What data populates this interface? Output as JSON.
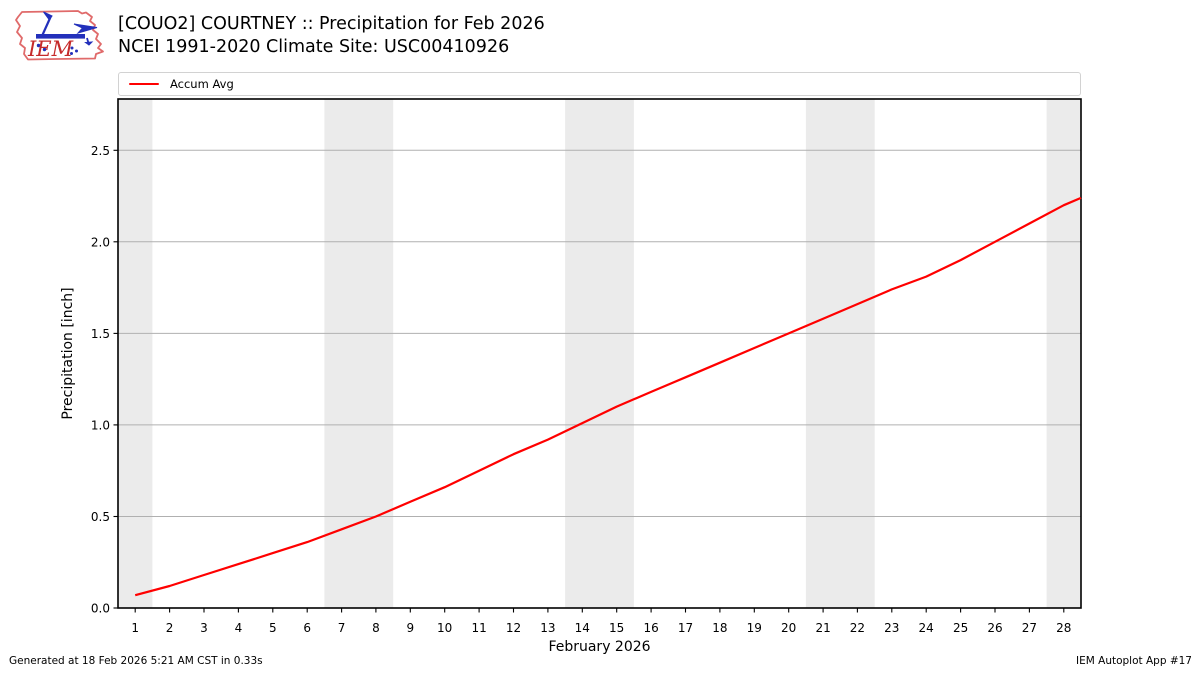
{
  "header": {
    "logo_text": "IEM",
    "title_line1": "[COUO2] COURTNEY :: Precipitation for Feb 2026",
    "title_line2": "NCEI 1991-2020 Climate Site: USC00410926"
  },
  "legend": {
    "items": [
      {
        "label": "Accum Avg",
        "color": "#ff0000"
      }
    ]
  },
  "chart_data": {
    "type": "line",
    "title": "[COUO2] COURTNEY :: Precipitation for Feb 2026",
    "subtitle": "NCEI 1991-2020 Climate Site: USC00410926",
    "xlabel": "February 2026",
    "ylabel": "Precipitation [inch]",
    "xlim": [
      0.5,
      28.5
    ],
    "ylim": [
      0,
      2.78
    ],
    "xticks": [
      1,
      2,
      3,
      4,
      5,
      6,
      7,
      8,
      9,
      10,
      11,
      12,
      13,
      14,
      15,
      16,
      17,
      18,
      19,
      20,
      21,
      22,
      23,
      24,
      25,
      26,
      27,
      28
    ],
    "yticks": [
      0.0,
      0.5,
      1.0,
      1.5,
      2.0,
      2.5
    ],
    "grid": "horizontal",
    "legend_position": "top",
    "weekend_shading_days": [
      1,
      7,
      8,
      14,
      15,
      21,
      22,
      28
    ],
    "series": [
      {
        "name": "Accum Avg",
        "color": "#ff0000",
        "x": [
          1,
          2,
          3,
          4,
          5,
          6,
          7,
          8,
          9,
          10,
          11,
          12,
          13,
          14,
          15,
          16,
          17,
          18,
          19,
          20,
          21,
          22,
          23,
          24,
          25,
          26,
          27,
          28,
          28.5
        ],
        "y": [
          0.07,
          0.12,
          0.18,
          0.24,
          0.3,
          0.36,
          0.43,
          0.5,
          0.58,
          0.66,
          0.75,
          0.84,
          0.92,
          1.01,
          1.1,
          1.18,
          1.26,
          1.34,
          1.42,
          1.5,
          1.58,
          1.66,
          1.74,
          1.81,
          1.9,
          2.0,
          2.1,
          2.2,
          2.24
        ]
      }
    ]
  },
  "footer": {
    "left": "Generated at 18 Feb 2026 5:21 AM CST in 0.33s",
    "right": "IEM Autoplot App #17"
  },
  "colors": {
    "accent_red": "#ff0000",
    "grid": "#b0b0b0",
    "weekend_band": "#ebebeb",
    "frame": "#000000",
    "logo_outline": "#e06a6a",
    "logo_text_red": "#c52a2a",
    "logo_blue": "#2330bb"
  }
}
